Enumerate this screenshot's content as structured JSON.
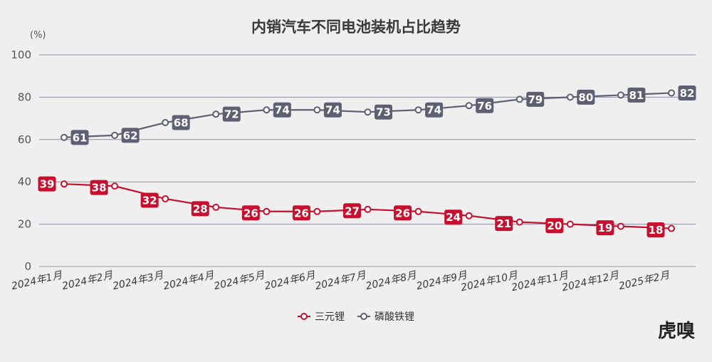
{
  "chart_data": {
    "type": "line",
    "title": "内销汽车不同电池装机占比趋势",
    "unit_label": "(%)",
    "categories": [
      "2024年1月",
      "2024年2月",
      "2024年3月",
      "2024年4月",
      "2024年5月",
      "2024年6月",
      "2024年7月",
      "2024年8月",
      "2024年9月",
      "2024年10月",
      "2024年11月",
      "2024年12月",
      "2025年2月"
    ],
    "ylim": [
      0,
      100
    ],
    "yticks": [
      0,
      20,
      40,
      60,
      80,
      100
    ],
    "grid": true,
    "legend_position": "bottom",
    "series": [
      {
        "name": "三元锂",
        "color": "#c8102e",
        "values": [
          39,
          38,
          32,
          28,
          26,
          26,
          27,
          26,
          24,
          21,
          20,
          19,
          18
        ]
      },
      {
        "name": "磷酸铁锂",
        "color": "#5e5f73",
        "values": [
          61,
          62,
          68,
          72,
          74,
          74,
          73,
          74,
          76,
          79,
          80,
          81,
          82
        ]
      }
    ]
  },
  "watermark": "虎嗅"
}
